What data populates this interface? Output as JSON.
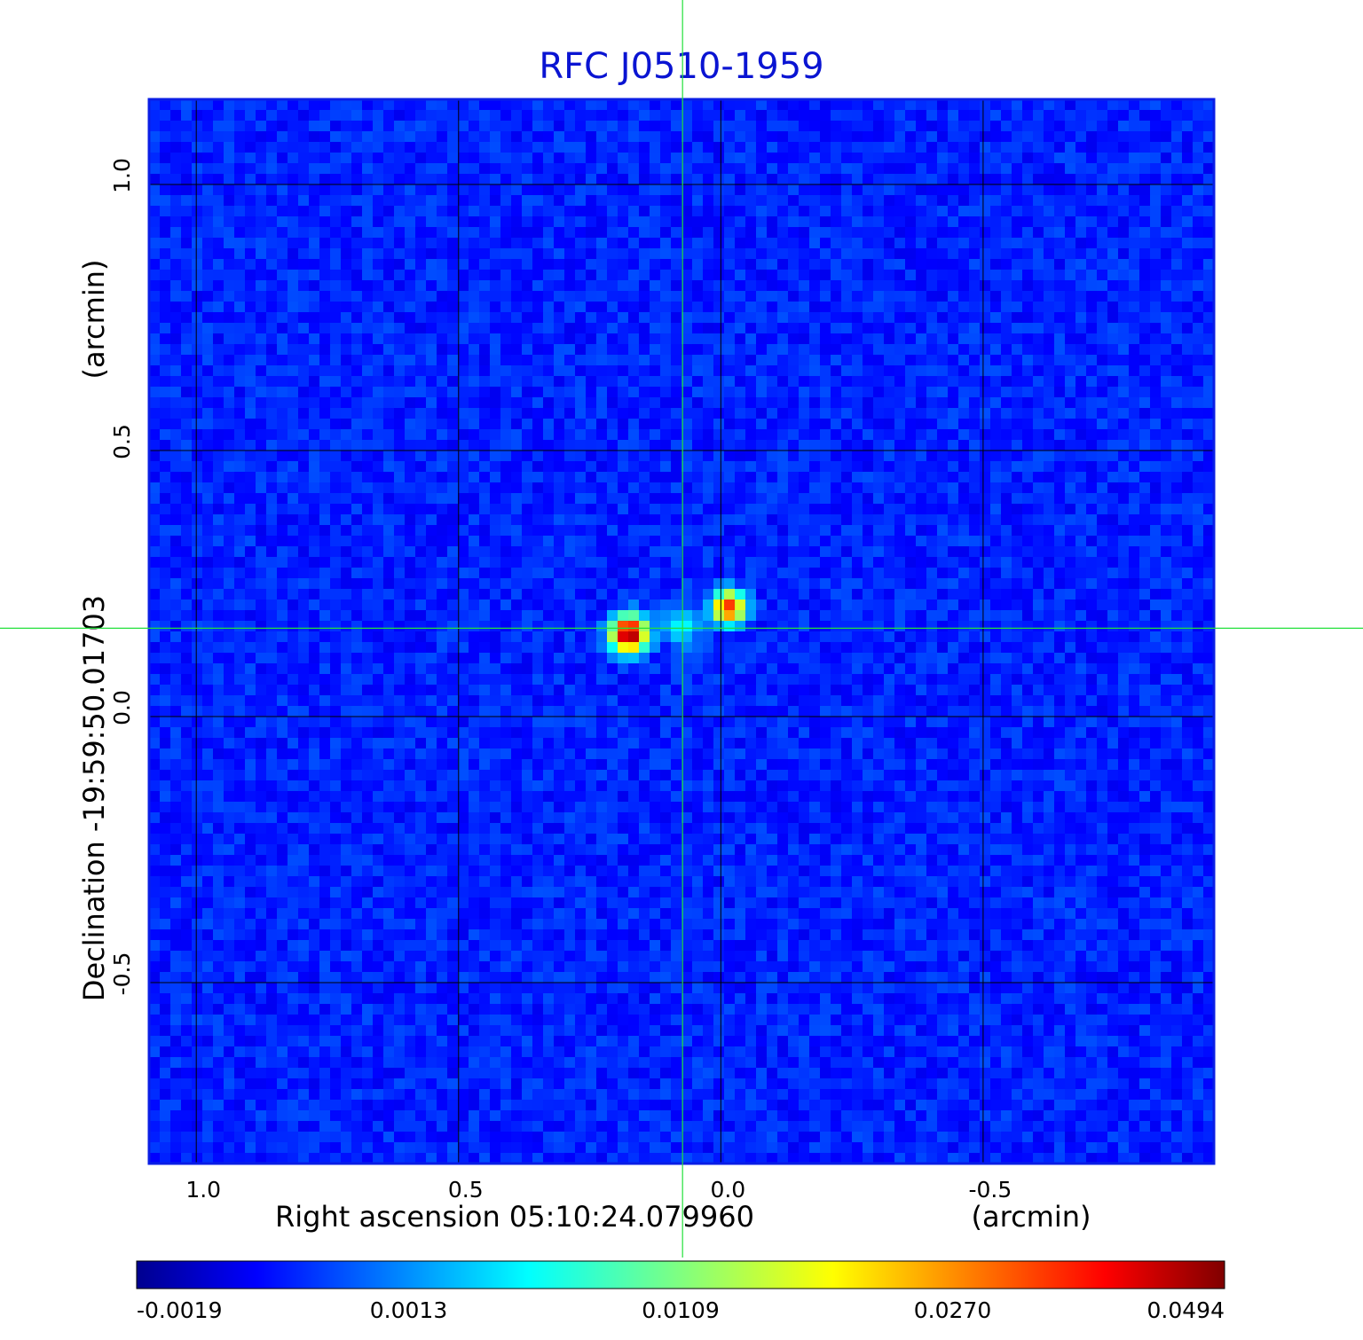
{
  "chart_data": {
    "type": "heatmap",
    "title": "RFC J0510-1959",
    "xlabel": "Right ascension  05:10:24.079960",
    "xunit": "(arcmin)",
    "ylabel": "Declination  -19:59:50.01703",
    "yunit": "(arcmin)",
    "xlim": [
      1.09,
      -0.94
    ],
    "ylim": [
      -0.84,
      1.16
    ],
    "xticks": [
      {
        "value": 1.0,
        "label": "1.0"
      },
      {
        "value": 0.5,
        "label": "0.5"
      },
      {
        "value": 0.0,
        "label": "0.0"
      },
      {
        "value": -0.5,
        "label": "-0.5"
      }
    ],
    "yticks": [
      {
        "value": 1.0,
        "label": "1.0"
      },
      {
        "value": 0.5,
        "label": "0.5"
      },
      {
        "value": 0.0,
        "label": "0.0"
      },
      {
        "value": -0.5,
        "label": "-0.5"
      }
    ],
    "grid": true,
    "crosshair": {
      "x": 0.073,
      "y": 0.166
    },
    "colormap": "jet",
    "colorbar": {
      "ticks": [
        "-0.0019",
        "0.0013",
        "0.0109",
        "0.0270",
        "0.0494"
      ],
      "min": -0.0019,
      "max": 0.0494
    },
    "sources": [
      {
        "x": 0.175,
        "y": 0.155,
        "peak": 0.0494,
        "width": 0.028
      },
      {
        "x": -0.015,
        "y": 0.205,
        "peak": 0.034,
        "width": 0.026
      },
      {
        "x": 0.075,
        "y": 0.17,
        "peak": 0.006,
        "width": 0.03
      }
    ],
    "background_level": 0.0001
  },
  "colors": {
    "title": "#0a14d2",
    "frame": "#0a1ee6",
    "grid": "#000000",
    "crosshair": "#22e03a"
  }
}
